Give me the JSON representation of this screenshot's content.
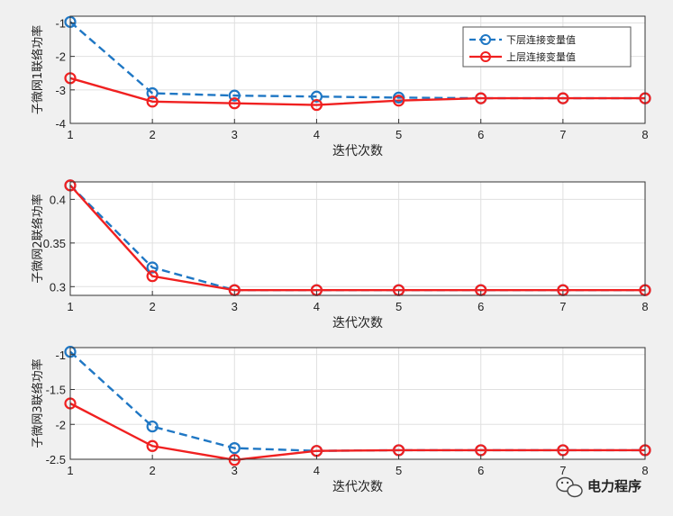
{
  "chart_data": [
    {
      "type": "line",
      "ylabel": "子微网1联络功率",
      "xlabel": "迭代次数",
      "x": [
        1,
        2,
        3,
        4,
        5,
        6,
        7,
        8
      ],
      "xlim": [
        1,
        8
      ],
      "ylim": [
        -4,
        -0.8
      ],
      "yticks": [
        -4,
        -3,
        -2,
        -1
      ],
      "xticklabels": [
        "1",
        "2",
        "3",
        "4",
        "5",
        "6",
        "7",
        "8"
      ],
      "yticklabels": [
        "-4",
        "-3",
        "-2",
        "-1"
      ],
      "grid": true,
      "legend_position": "top-right",
      "series": [
        {
          "name": "下层连接变量值",
          "values": [
            -0.97,
            -3.1,
            -3.17,
            -3.2,
            -3.23,
            -3.25,
            -3.25,
            -3.25
          ]
        },
        {
          "name": "上层连接变量值",
          "values": [
            -2.65,
            -3.35,
            -3.4,
            -3.45,
            -3.32,
            -3.25,
            -3.25,
            -3.25
          ]
        }
      ]
    },
    {
      "type": "line",
      "ylabel": "子微网2联络功率",
      "xlabel": "迭代次数",
      "x": [
        1,
        2,
        3,
        4,
        5,
        6,
        7,
        8
      ],
      "xlim": [
        1,
        8
      ],
      "ylim": [
        0.29,
        0.42
      ],
      "yticks": [
        0.3,
        0.35,
        0.4
      ],
      "xticklabels": [
        "1",
        "2",
        "3",
        "4",
        "5",
        "6",
        "7",
        "8"
      ],
      "yticklabels": [
        "0.3",
        "0.35",
        "0.4"
      ],
      "grid": true,
      "series": [
        {
          "name": "下层连接变量值",
          "values": [
            0.416,
            0.322,
            0.296,
            0.296,
            0.296,
            0.296,
            0.296,
            0.296
          ]
        },
        {
          "name": "上层连接变量值",
          "values": [
            0.416,
            0.312,
            0.296,
            0.296,
            0.296,
            0.296,
            0.296,
            0.296
          ]
        }
      ]
    },
    {
      "type": "line",
      "ylabel": "子微网3联络功率",
      "xlabel": "迭代次数",
      "x": [
        1,
        2,
        3,
        4,
        5,
        6,
        7,
        8
      ],
      "xlim": [
        1,
        8
      ],
      "ylim": [
        -2.5,
        -0.9
      ],
      "yticks": [
        -2.5,
        -2,
        -1.5,
        -1
      ],
      "xticklabels": [
        "1",
        "2",
        "3",
        "4",
        "5",
        "6",
        "7",
        "8"
      ],
      "yticklabels": [
        "-2.5",
        "-2",
        "-1.5",
        "-1"
      ],
      "grid": true,
      "series": [
        {
          "name": "下层连接变量值",
          "values": [
            -0.96,
            -2.03,
            -2.34,
            -2.38,
            -2.37,
            -2.37,
            -2.37,
            -2.37
          ]
        },
        {
          "name": "上层连接变量值",
          "values": [
            -1.7,
            -2.31,
            -2.51,
            -2.38,
            -2.37,
            -2.37,
            -2.37,
            -2.37
          ]
        }
      ]
    }
  ],
  "colors": {
    "lower": "#1f77c4",
    "upper": "#f02020",
    "grid": "#e0e0e0",
    "axes_bg": "#ffffff"
  },
  "watermark": {
    "text": "电力程序",
    "icon": "wechat-icon"
  }
}
